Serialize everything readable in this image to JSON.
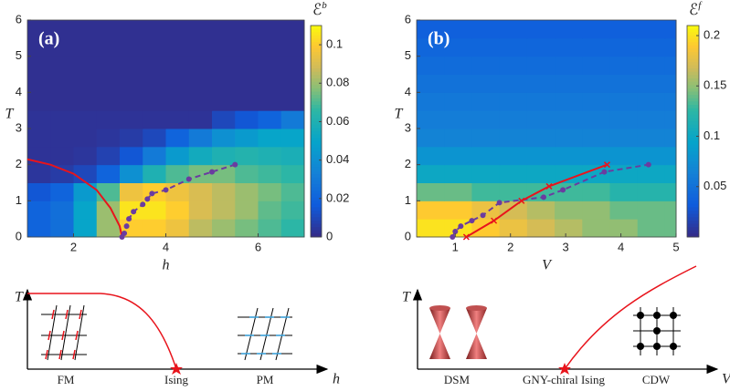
{
  "chart_data": [
    {
      "type": "heatmap",
      "panel_label": "(a)",
      "xlabel": "h",
      "ylabel": "T",
      "colormap": "parula",
      "xlim": [
        1,
        7
      ],
      "ylim": [
        0,
        6
      ],
      "xticks": [
        2,
        4,
        6
      ],
      "yticks": [
        0,
        1,
        2,
        3,
        4,
        5,
        6
      ],
      "x_edges": [
        1,
        1.5,
        2,
        2.5,
        3,
        3.5,
        4,
        4.5,
        5,
        5.5,
        6,
        6.5,
        7
      ],
      "y_edges": [
        0,
        0.5,
        1,
        1.5,
        2,
        2.5,
        3,
        3.5,
        4,
        4.5,
        5,
        5.5,
        6
      ],
      "z": [
        [
          0.02,
          0.025,
          0.05,
          0.08,
          0.1,
          0.1,
          0.095,
          0.085,
          0.08,
          0.075,
          0.07,
          0.065
        ],
        [
          0.02,
          0.025,
          0.05,
          0.08,
          0.105,
          0.105,
          0.1,
          0.09,
          0.085,
          0.08,
          0.072,
          0.068
        ],
        [
          0.015,
          0.02,
          0.045,
          0.07,
          0.095,
          0.1,
          0.095,
          0.09,
          0.085,
          0.08,
          0.075,
          0.07
        ],
        [
          0.004,
          0.006,
          0.01,
          0.02,
          0.04,
          0.06,
          0.07,
          0.075,
          0.075,
          0.07,
          0.068,
          0.065
        ],
        [
          0.003,
          0.003,
          0.004,
          0.008,
          0.015,
          0.03,
          0.045,
          0.055,
          0.06,
          0.062,
          0.06,
          0.058
        ],
        [
          0.003,
          0.003,
          0.003,
          0.004,
          0.006,
          0.01,
          0.02,
          0.03,
          0.04,
          0.045,
          0.05,
          0.05
        ],
        [
          0.003,
          0.003,
          0.003,
          0.003,
          0.003,
          0.003,
          0.003,
          0.003,
          0.01,
          0.015,
          0.02,
          0.03
        ],
        [
          0.002,
          0.002,
          0.002,
          0.002,
          0.002,
          0.002,
          0.002,
          0.002,
          0.002,
          0.002,
          0.002,
          0.002
        ],
        [
          0.002,
          0.002,
          0.002,
          0.002,
          0.002,
          0.002,
          0.002,
          0.002,
          0.002,
          0.002,
          0.002,
          0.002
        ],
        [
          0.002,
          0.002,
          0.002,
          0.002,
          0.002,
          0.002,
          0.002,
          0.002,
          0.002,
          0.002,
          0.002,
          0.002
        ],
        [
          0.002,
          0.002,
          0.002,
          0.002,
          0.002,
          0.002,
          0.002,
          0.002,
          0.002,
          0.002,
          0.002,
          0.002
        ],
        [
          0.002,
          0.002,
          0.002,
          0.002,
          0.002,
          0.002,
          0.002,
          0.002,
          0.002,
          0.002,
          0.002,
          0.002
        ]
      ],
      "colorbar": {
        "label": "ℰ",
        "superscript": "b",
        "lim": [
          0,
          0.11
        ],
        "ticks": [
          0,
          0.02,
          0.04,
          0.06,
          0.08,
          0.1
        ]
      },
      "lines": [
        {
          "color": "#e8141c",
          "style": "solid",
          "marker": "none",
          "x": [
            1,
            1.5,
            2,
            2.5,
            2.8,
            3,
            3.05
          ],
          "y": [
            2.15,
            2,
            1.75,
            1.3,
            0.8,
            0.3,
            0
          ]
        },
        {
          "color": "#6a3ca0",
          "style": "dashed",
          "marker": "dot",
          "x": [
            3.05,
            3.1,
            3.15,
            3.2,
            3.3,
            3.5,
            3.6,
            3.7,
            4,
            4.5,
            5,
            5.5
          ],
          "y": [
            0,
            0.1,
            0.3,
            0.5,
            0.7,
            0.9,
            1.05,
            1.2,
            1.3,
            1.6,
            1.8,
            2
          ]
        }
      ]
    },
    {
      "type": "heatmap",
      "panel_label": "(b)",
      "xlabel": "V",
      "ylabel": "T",
      "colormap": "parula",
      "xlim": [
        0.3,
        5
      ],
      "ylim": [
        0,
        6
      ],
      "xticks": [
        1,
        2,
        3,
        4,
        5
      ],
      "yticks": [
        0,
        1,
        2,
        3,
        4,
        5,
        6
      ],
      "x_edges": [
        0.3,
        0.8,
        1.3,
        1.8,
        2.3,
        2.8,
        3.3,
        3.8,
        4.3,
        4.8,
        5
      ],
      "y_edges": [
        0,
        0.5,
        1,
        1.5,
        2,
        2.5,
        3,
        3.5,
        4,
        4.5,
        5,
        5.5,
        6
      ],
      "z": [
        [
          0.2,
          0.2,
          0.19,
          0.18,
          0.17,
          0.16,
          0.15,
          0.15,
          0.14,
          0.14
        ],
        [
          0.19,
          0.19,
          0.18,
          0.17,
          0.16,
          0.15,
          0.15,
          0.14,
          0.14,
          0.14
        ],
        [
          0.14,
          0.14,
          0.13,
          0.13,
          0.13,
          0.13,
          0.13,
          0.12,
          0.12,
          0.12
        ],
        [
          0.1,
          0.1,
          0.1,
          0.1,
          0.1,
          0.1,
          0.1,
          0.1,
          0.1,
          0.1
        ],
        [
          0.08,
          0.08,
          0.08,
          0.08,
          0.08,
          0.08,
          0.08,
          0.08,
          0.08,
          0.08
        ],
        [
          0.065,
          0.065,
          0.065,
          0.065,
          0.065,
          0.065,
          0.065,
          0.065,
          0.065,
          0.065
        ],
        [
          0.06,
          0.06,
          0.06,
          0.06,
          0.06,
          0.06,
          0.06,
          0.06,
          0.06,
          0.06
        ],
        [
          0.055,
          0.055,
          0.055,
          0.055,
          0.055,
          0.055,
          0.055,
          0.055,
          0.055,
          0.055
        ],
        [
          0.05,
          0.05,
          0.05,
          0.05,
          0.05,
          0.05,
          0.05,
          0.05,
          0.05,
          0.05
        ],
        [
          0.045,
          0.045,
          0.045,
          0.045,
          0.045,
          0.045,
          0.045,
          0.045,
          0.045,
          0.045
        ],
        [
          0.04,
          0.04,
          0.04,
          0.04,
          0.04,
          0.04,
          0.04,
          0.04,
          0.04,
          0.04
        ],
        [
          0.035,
          0.035,
          0.035,
          0.035,
          0.035,
          0.035,
          0.035,
          0.035,
          0.035,
          0.035
        ]
      ],
      "colorbar": {
        "label": "ℰ",
        "superscript": "f",
        "lim": [
          0,
          0.21
        ],
        "ticks": [
          0.05,
          0.1,
          0.15,
          0.2
        ]
      },
      "lines": [
        {
          "color": "#6a3ca0",
          "style": "dashed",
          "marker": "dot",
          "x": [
            0.95,
            1,
            1.1,
            1.3,
            1.5,
            1.8,
            2.6,
            2.95,
            3.7,
            4.5
          ],
          "y": [
            0,
            0.15,
            0.3,
            0.45,
            0.6,
            0.95,
            1.1,
            1.3,
            1.8,
            2
          ]
        },
        {
          "color": "#e8141c",
          "style": "solid",
          "marker": "x",
          "x": [
            1.2,
            1.7,
            2.2,
            2.7,
            3.75
          ],
          "y": [
            0,
            0.45,
            1,
            1.4,
            2
          ]
        }
      ]
    }
  ],
  "diagrams": [
    {
      "y_axis": "T",
      "x_axis": "h",
      "phases": [
        "FM",
        "Ising",
        "PM"
      ]
    },
    {
      "y_axis": "T",
      "x_axis": "V",
      "phases": [
        "DSM",
        "GNY-chiral Ising",
        "CDW"
      ]
    }
  ]
}
